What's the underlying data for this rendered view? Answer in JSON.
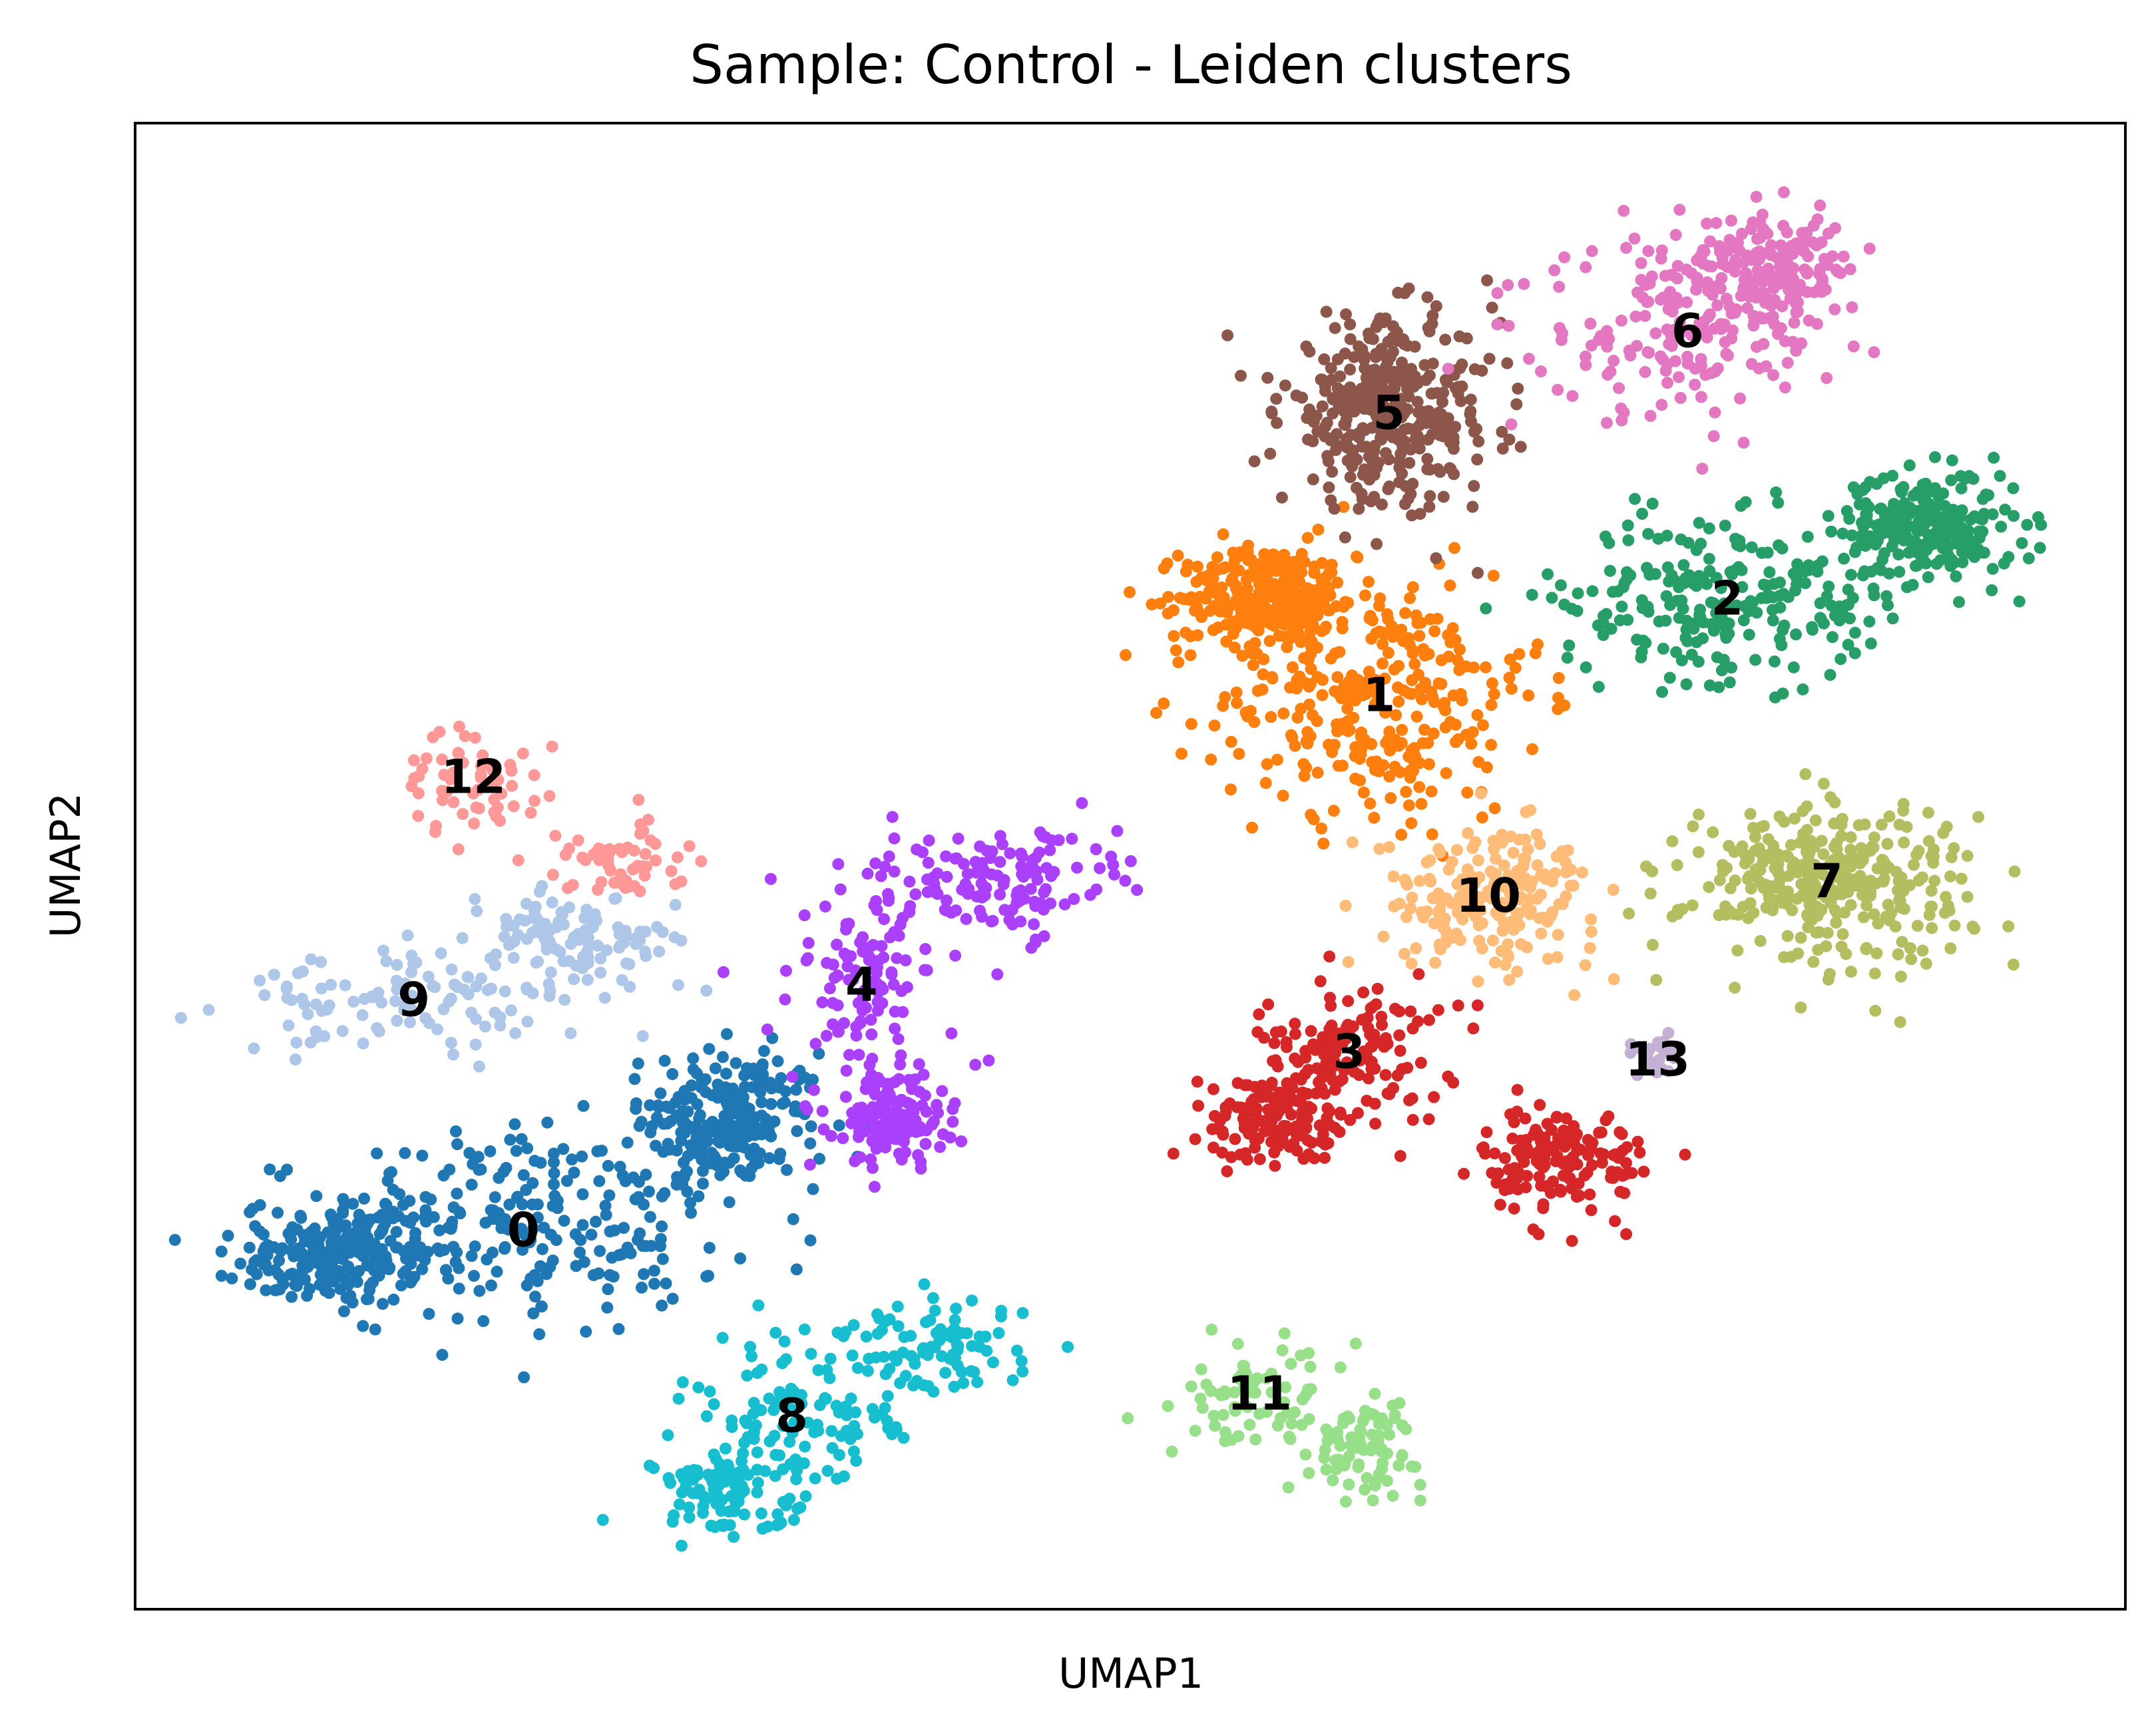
{
  "chart_data": {
    "type": "scatter",
    "title": "Sample: Control - Leiden clusters",
    "xlabel": "UMAP1",
    "ylabel": "UMAP2",
    "xticks": [],
    "yticks": [],
    "xlim": [
      0,
      100
    ],
    "ylim": [
      0,
      100
    ],
    "grid": false,
    "legend": "on data",
    "clusters": [
      {
        "name": "0",
        "color": "#1f77b4",
        "center": [
          19.5,
          25.5
        ],
        "count": 700
      },
      {
        "name": "1",
        "color": "#ff7f0e",
        "center": [
          62.5,
          61.5
        ],
        "count": 600
      },
      {
        "name": "2",
        "color": "#279e68",
        "center": [
          80,
          68
        ],
        "count": 480
      },
      {
        "name": "3",
        "color": "#d62728",
        "center": [
          61,
          37.5
        ],
        "count": 430
      },
      {
        "name": "4",
        "color": "#aa40fc",
        "center": [
          36.5,
          42
        ],
        "count": 380
      },
      {
        "name": "5",
        "color": "#8c564b",
        "center": [
          63,
          80.5
        ],
        "count": 360
      },
      {
        "name": "6",
        "color": "#e377c2",
        "center": [
          78,
          86
        ],
        "count": 340
      },
      {
        "name": "7",
        "color": "#b5bd61",
        "center": [
          85,
          49
        ],
        "count": 320
      },
      {
        "name": "8",
        "color": "#17becf",
        "center": [
          33,
          13
        ],
        "count": 300
      },
      {
        "name": "9",
        "color": "#aec7e8",
        "center": [
          14,
          41
        ],
        "count": 220
      },
      {
        "name": "10",
        "color": "#ffbb78",
        "center": [
          68,
          48
        ],
        "count": 200
      },
      {
        "name": "11",
        "color": "#98df8a",
        "center": [
          56.5,
          14.5
        ],
        "count": 150
      },
      {
        "name": "12",
        "color": "#ff9896",
        "center": [
          17,
          56
        ],
        "count": 120
      },
      {
        "name": "13",
        "color": "#c5b0d5",
        "center": [
          76.5,
          37
        ],
        "count": 25
      }
    ]
  }
}
